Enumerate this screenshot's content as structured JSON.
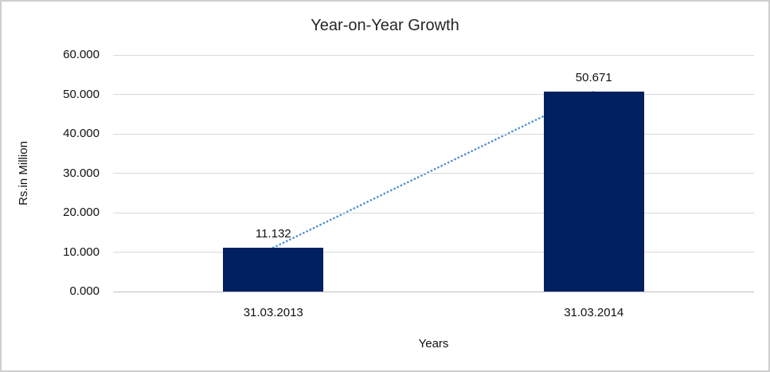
{
  "chart_data": {
    "type": "bar",
    "title": "Year-on-Year Growth",
    "xlabel": "Years",
    "ylabel": "Rs.in Million",
    "categories": [
      "31.03.2013",
      "31.03.2014"
    ],
    "values": [
      11.132,
      50.671
    ],
    "value_labels": [
      "11.132",
      "50.671"
    ],
    "yticks": [
      "60.000",
      "50.000",
      "40.000",
      "30.000",
      "20.000",
      "10.000",
      "0.000"
    ],
    "ylim": [
      0,
      60
    ],
    "grid": true,
    "legend_position": "none",
    "trendline": {
      "style": "dotted",
      "values": [
        11.132,
        50.671
      ]
    },
    "colors": {
      "bar": "#002060",
      "trend": "#4e8fd2",
      "gridline": "#d9d9d9",
      "axis_line": "#bfbfbf",
      "text": "#111111",
      "border": "#cfcfcf",
      "background": "#ffffff"
    }
  }
}
